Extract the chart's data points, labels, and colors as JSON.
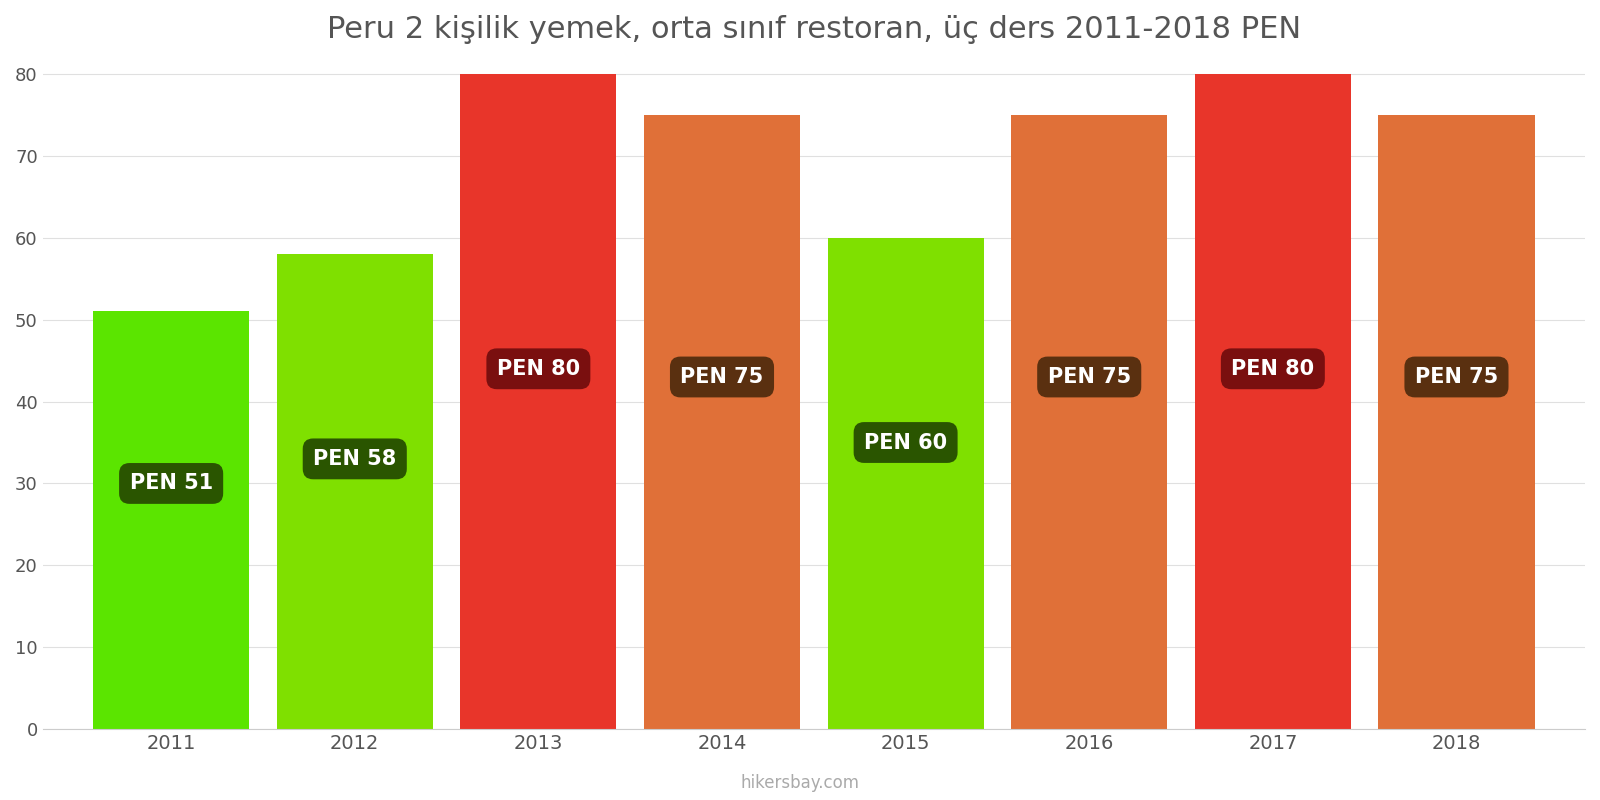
{
  "years": [
    2011,
    2012,
    2013,
    2014,
    2015,
    2016,
    2017,
    2018
  ],
  "values": [
    51,
    58,
    80,
    75,
    60,
    75,
    80,
    75
  ],
  "bar_colors": [
    "#5BE500",
    "#7FE000",
    "#E8352A",
    "#E07038",
    "#7FE000",
    "#E07038",
    "#E8352A",
    "#E07038"
  ],
  "label_bg_colors": [
    "#2A5500",
    "#2A5500",
    "#7A0F0F",
    "#5A3010",
    "#2A5500",
    "#5A3010",
    "#7A0F0F",
    "#5A3010"
  ],
  "labels": [
    "PEN 51",
    "PEN 58",
    "PEN 80",
    "PEN 75",
    "PEN 60",
    "PEN 75",
    "PEN 80",
    "PEN 75"
  ],
  "label_y_positions": [
    30,
    33,
    44,
    43,
    35,
    43,
    44,
    43
  ],
  "title": "Peru 2 kişilik yemek, orta sınıf restoran, üç ders 2011-2018 PEN",
  "ylabel_max": 80,
  "yticks": [
    0,
    10,
    20,
    30,
    40,
    50,
    60,
    70,
    80
  ],
  "watermark": "hikersbay.com",
  "title_color": "#555555",
  "title_fontsize": 22,
  "bar_width": 0.85
}
